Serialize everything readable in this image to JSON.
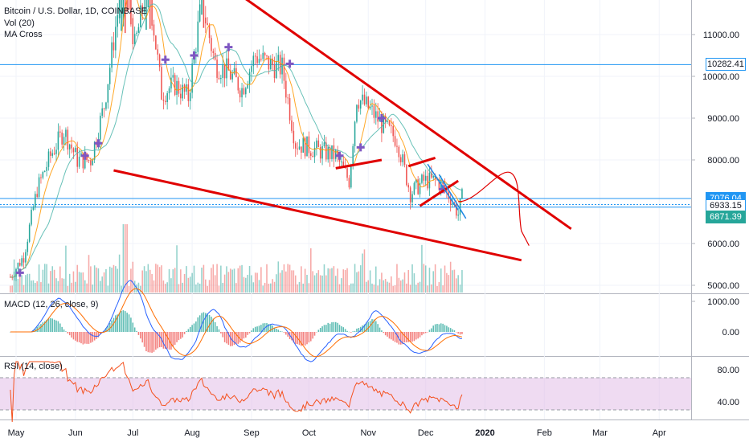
{
  "legend": {
    "title": "Bitcoin / U.S. Dollar, 1D, COINBASE",
    "vol": "Vol (20)",
    "ma": "MA Cross",
    "macd": "MACD (12, 26, close, 9)",
    "rsi": "RSI (14, close)"
  },
  "colors": {
    "up": "#26a69a",
    "down": "#ef5350",
    "drawing": "#e00000",
    "hline": "#2196f3",
    "ma_fast": "#ff9800",
    "ma_slow": "#4db6ac",
    "rsi_band": "#e1bee7",
    "rsi_line": "#f4511e",
    "macd_line": "#2962ff",
    "signal_line": "#ff6d00"
  },
  "price_tags": [
    {
      "value": "10282.41",
      "style": "outline"
    },
    {
      "value": "7076.04",
      "style": "blue"
    },
    {
      "value": "6933.15",
      "style": "outline"
    },
    {
      "value": "6871.39",
      "style": "green"
    }
  ],
  "chart_data": {
    "type": "candlestick",
    "title": "Bitcoin / U.S. Dollar, 1D, COINBASE",
    "x_tick_labels": [
      "May",
      "Jun",
      "Jul",
      "Aug",
      "Sep",
      "Oct",
      "Nov",
      "Dec",
      "2020",
      "Feb",
      "Mar",
      "Apr"
    ],
    "y_price_ticks": [
      "11000.00",
      "10000.00",
      "9000.00",
      "8000.00",
      "6000.00",
      "5000.00"
    ],
    "y_price_values": [
      11000,
      10000,
      9000,
      8000,
      6000,
      5000
    ],
    "ylim_price": [
      4900,
      11900
    ],
    "macd_ticks": [
      "1000.00",
      "0.00"
    ],
    "macd_values": [
      1000,
      0
    ],
    "rsi_ticks": [
      "80.00",
      "40.00"
    ],
    "rsi_values": [
      80,
      40
    ],
    "rsi_band": [
      30,
      70
    ],
    "horizontal_levels": [
      10282.41,
      7076.04,
      6933.15,
      6871.39
    ],
    "price_path": [
      [
        "2019-04-28",
        5200
      ],
      [
        "2019-05-05",
        5700
      ],
      [
        "2019-05-12",
        7300
      ],
      [
        "2019-05-19",
        8100
      ],
      [
        "2019-05-26",
        8700
      ],
      [
        "2019-06-02",
        8000
      ],
      [
        "2019-06-09",
        8000
      ],
      [
        "2019-06-16",
        9300
      ],
      [
        "2019-06-23",
        11500
      ],
      [
        "2019-06-26",
        12900
      ],
      [
        "2019-07-02",
        10700
      ],
      [
        "2019-07-09",
        12300
      ],
      [
        "2019-07-16",
        9600
      ],
      [
        "2019-07-23",
        9800
      ],
      [
        "2019-07-30",
        9500
      ],
      [
        "2019-08-06",
        11800
      ],
      [
        "2019-08-13",
        10300
      ],
      [
        "2019-08-20",
        10100
      ],
      [
        "2019-08-27",
        9700
      ],
      [
        "2019-09-03",
        10500
      ],
      [
        "2019-09-10",
        10300
      ],
      [
        "2019-09-17",
        10200
      ],
      [
        "2019-09-24",
        8400
      ],
      [
        "2019-10-01",
        8300
      ],
      [
        "2019-10-08",
        8200
      ],
      [
        "2019-10-15",
        8100
      ],
      [
        "2019-10-22",
        7500
      ],
      [
        "2019-10-26",
        9500
      ],
      [
        "2019-11-02",
        9200
      ],
      [
        "2019-11-09",
        8800
      ],
      [
        "2019-11-16",
        8500
      ],
      [
        "2019-11-23",
        7200
      ],
      [
        "2019-11-30",
        7500
      ],
      [
        "2019-12-07",
        7500
      ],
      [
        "2019-12-14",
        7100
      ],
      [
        "2019-12-18",
        6700
      ],
      [
        "2019-12-20",
        7100
      ]
    ],
    "markers_plus": [
      [
        "2019-05-03",
        5300
      ],
      [
        "2019-06-06",
        8100
      ],
      [
        "2019-06-13",
        8400
      ],
      [
        "2019-07-18",
        10400
      ],
      [
        "2019-08-02",
        10500
      ],
      [
        "2019-08-20",
        10700
      ],
      [
        "2019-09-21",
        10300
      ],
      [
        "2019-10-17",
        8100
      ],
      [
        "2019-10-28",
        8300
      ],
      [
        "2019-11-08",
        9000
      ],
      [
        "2019-12-10",
        7300
      ]
    ],
    "volume_max_date": "2019-06-27"
  }
}
